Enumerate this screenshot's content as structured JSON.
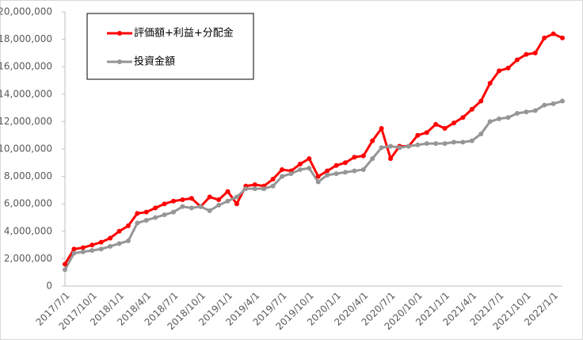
{
  "chart_data": {
    "type": "line",
    "categories": [
      "2017/7/1",
      null,
      null,
      "2017/10/1",
      null,
      null,
      "2018/1/1",
      null,
      null,
      "2018/4/1",
      null,
      null,
      "2018/7/1",
      null,
      null,
      "2018/10/1",
      null,
      null,
      "2019/1/1",
      null,
      null,
      "2019/4/1",
      null,
      null,
      "2019/7/1",
      null,
      null,
      "2019/10/1",
      null,
      null,
      "2020/1/1",
      null,
      null,
      "2020/4/1",
      null,
      null,
      "2020/7/1",
      null,
      null,
      "2020/10/1",
      null,
      null,
      "2021/1/1",
      null,
      null,
      "2021/4/1",
      null,
      null,
      "2021/7/1",
      null,
      null,
      "2021/10/1",
      null,
      null,
      "2022/1/1",
      null
    ],
    "series": [
      {
        "name": "評価額+利益+分配金",
        "color": "#ff0000",
        "values": [
          1600000,
          2700000,
          2800000,
          3000000,
          3200000,
          3500000,
          4000000,
          4400000,
          5300000,
          5400000,
          5700000,
          6000000,
          6200000,
          6300000,
          6400000,
          5800000,
          6500000,
          6300000,
          6900000,
          6000000,
          7300000,
          7400000,
          7300000,
          7800000,
          8500000,
          8400000,
          8900000,
          9300000,
          8000000,
          8400000,
          8800000,
          9000000,
          9400000,
          9500000,
          10600000,
          11500000,
          9300000,
          10200000,
          10200000,
          11000000,
          11200000,
          11800000,
          11500000,
          11900000,
          12300000,
          12900000,
          13500000,
          14800000,
          15700000,
          15900000,
          16500000,
          16900000,
          17000000,
          18100000,
          18400000,
          18100000
        ]
      },
      {
        "name": "投資金額",
        "color": "#969696",
        "values": [
          1200000,
          2400000,
          2500000,
          2600000,
          2700000,
          2900000,
          3100000,
          3300000,
          4600000,
          4800000,
          5000000,
          5200000,
          5400000,
          5800000,
          5700000,
          5800000,
          5500000,
          5900000,
          6200000,
          6500000,
          7100000,
          7100000,
          7100000,
          7300000,
          8000000,
          8200000,
          8500000,
          8600000,
          7600000,
          8100000,
          8200000,
          8300000,
          8400000,
          8500000,
          9300000,
          10100000,
          10200000,
          10100000,
          10200000,
          10300000,
          10400000,
          10400000,
          10400000,
          10500000,
          10500000,
          10600000,
          11100000,
          12000000,
          12200000,
          12300000,
          12600000,
          12700000,
          12800000,
          13200000,
          13300000,
          13500000
        ]
      }
    ],
    "ylim": [
      0,
      20000000
    ],
    "yticks": [
      0,
      {
        "value": 2000000,
        "label": "2,000,000"
      },
      {
        "value": 4000000,
        "label": "4,000,000"
      },
      {
        "value": 6000000,
        "label": "6,000,000"
      },
      {
        "value": 8000000,
        "label": "8,000,000"
      },
      {
        "value": 10000000,
        "label": "10,000,000"
      },
      {
        "value": 12000000,
        "label": "12,000,000"
      },
      {
        "value": 14000000,
        "label": "14,000,000"
      },
      {
        "value": 16000000,
        "label": "16,000,000"
      },
      {
        "value": 18000000,
        "label": "18,000,000"
      },
      {
        "value": 20000000,
        "label": "20,000,000"
      }
    ],
    "grid": false,
    "legend": "upper left"
  }
}
